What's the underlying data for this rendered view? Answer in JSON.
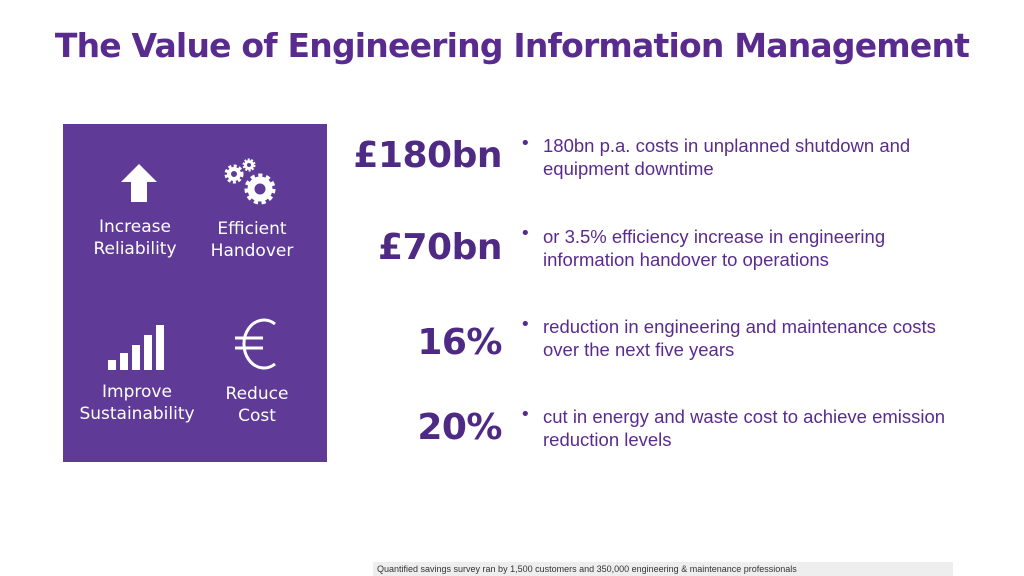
{
  "header": {
    "title": "The Value of Engineering Information Management"
  },
  "panel": {
    "items": [
      {
        "label": [
          "Increase",
          "Reliability"
        ]
      },
      {
        "label": [
          "Efficient",
          "Handover"
        ]
      },
      {
        "label": [
          "Improve",
          "Sustainability"
        ]
      },
      {
        "label": [
          "Reduce",
          "Cost"
        ]
      }
    ]
  },
  "stats": [
    {
      "figure": "£180bn",
      "text": "180bn p.a. costs in unplanned shutdown and equipment downtime"
    },
    {
      "figure": "£70bn",
      "text": "or 3.5% efficiency increase in engineering information handover to operations"
    },
    {
      "figure": "16%",
      "text": "reduction in engineering and maintenance costs over the next five years"
    },
    {
      "figure": "20%",
      "text": "cut in energy and waste cost to achieve emission reduction levels"
    }
  ],
  "footnote": "Quantified savings survey ran by 1,500 customers and 350,000 engineering & maintenance professionals"
}
